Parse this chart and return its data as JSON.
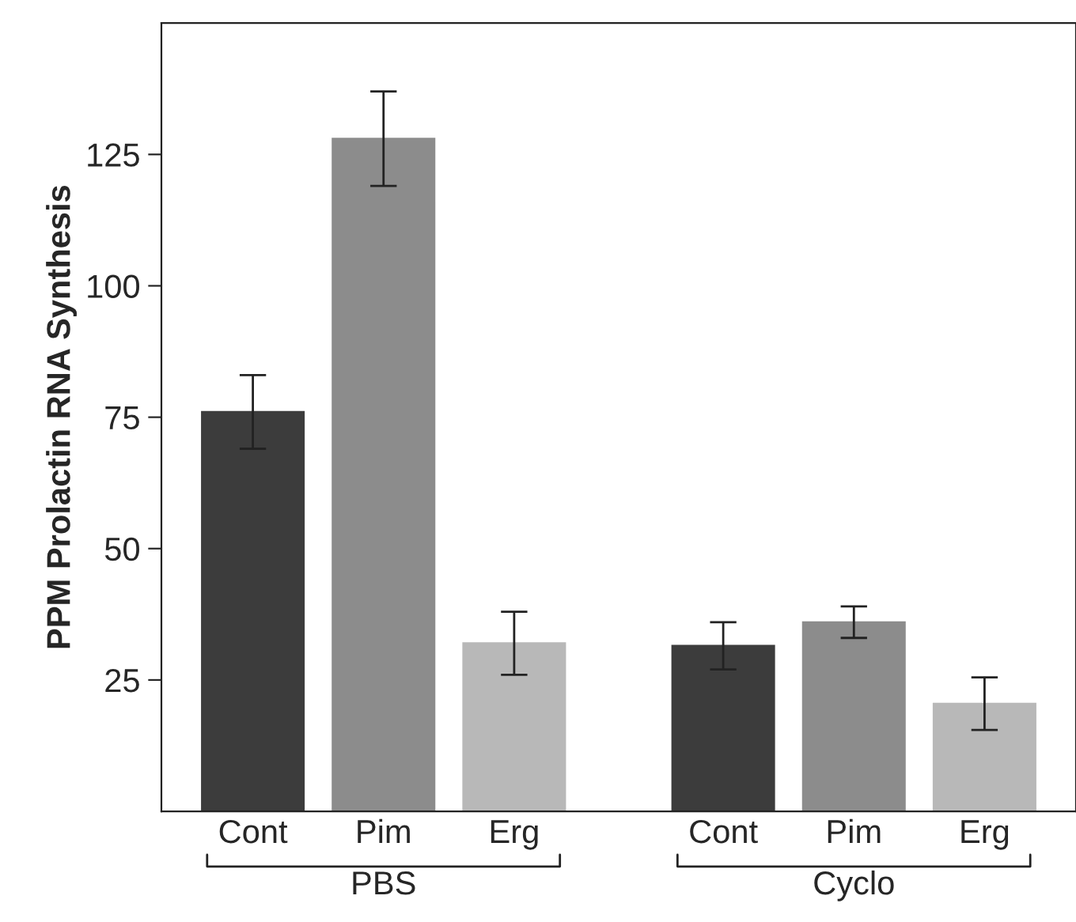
{
  "chart_data": {
    "type": "bar",
    "ylabel": "PPM Prolactin RNA Synthesis",
    "categories": [
      "Cont",
      "Pim",
      "Erg",
      "Cont",
      "Pim",
      "Erg"
    ],
    "values": [
      76,
      128,
      32,
      31.5,
      36,
      20.5
    ],
    "errors": [
      7,
      9,
      6,
      4.5,
      3,
      5
    ],
    "colors": [
      "#3c3c3c",
      "#8c8c8c",
      "#b8b8b8",
      "#3c3c3c",
      "#8c8c8c",
      "#b8b8b8"
    ],
    "ylim": [
      0,
      150
    ],
    "yticks": [
      25,
      50,
      75,
      100,
      125
    ],
    "annotations": [
      "PBS",
      "Cyclo"
    ],
    "grid": false,
    "legend": false
  }
}
